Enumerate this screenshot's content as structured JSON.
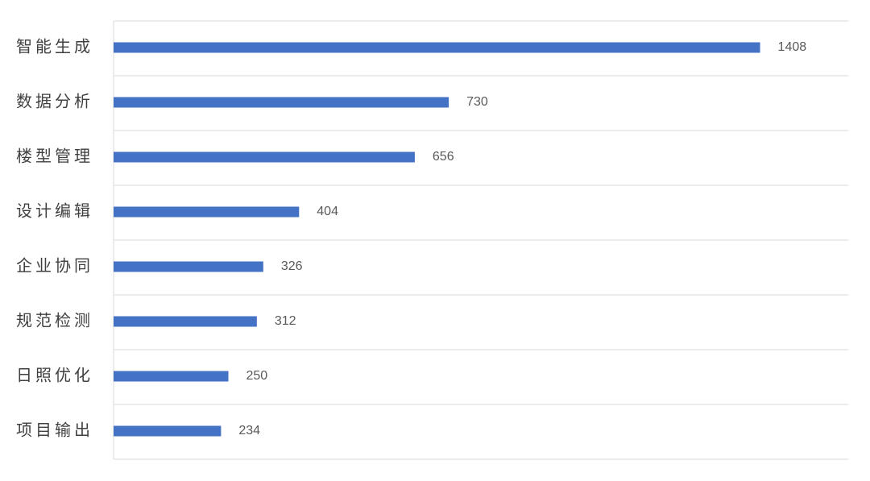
{
  "chart_data": {
    "type": "barh",
    "categories": [
      "智能生成",
      "数据分析",
      "楼型管理",
      "设计编辑",
      "企业协同",
      "规范检测",
      "日照优化",
      "项目输出"
    ],
    "values": [
      1408,
      730,
      656,
      404,
      326,
      312,
      250,
      234
    ],
    "color": "#4472c4",
    "xlim": [
      0,
      1600
    ]
  }
}
